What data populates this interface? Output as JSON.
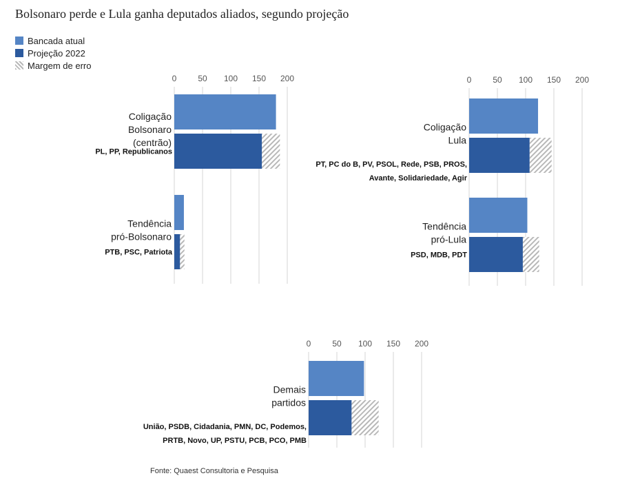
{
  "title": "Bolsonaro perde e Lula ganha deputados aliados, segundo projeção",
  "legend": {
    "atual": "Bancada atual",
    "projecao": "Projeção 2022",
    "margem": "Margem de erro"
  },
  "source": "Fonte: Quaest Consultoria e Pesquisa",
  "colors": {
    "atual": "#5585c5",
    "projecao": "#2c5a9e",
    "margem": "#b8b8b8",
    "grid": "#d4d4d4"
  },
  "chart_data": {
    "type": "bar",
    "xlim": [
      0,
      200
    ],
    "ticks": [
      "0",
      "50",
      "100",
      "150",
      "200"
    ],
    "panels": [
      {
        "groups": [
          {
            "label_lines": [
              "Coligação",
              "Bolsonaro",
              "(centrão)"
            ],
            "parties": [
              "PL, PP, Republicanos"
            ],
            "atual": 180,
            "projecao": 155,
            "margem_low": 155,
            "margem_high": 187
          },
          {
            "label_lines": [
              "Tendência",
              "pró-Bolsonaro"
            ],
            "parties": [
              "PTB, PSC, Patriota"
            ],
            "atual": 17,
            "projecao": 10,
            "margem_low": 8,
            "margem_high": 18
          }
        ]
      },
      {
        "groups": [
          {
            "label_lines": [
              "Coligação",
              "Lula"
            ],
            "parties": [
              "PT, PC do B, PV, PSOL, Rede, PSB, PROS,",
              "Avante, Solidariedade, Agir"
            ],
            "atual": 122,
            "projecao": 107,
            "margem_low": 107,
            "margem_high": 146
          },
          {
            "label_lines": [
              "Tendência",
              "pró-Lula"
            ],
            "parties": [
              "PSD, MDB, PDT"
            ],
            "atual": 103,
            "projecao": 95,
            "margem_low": 95,
            "margem_high": 124
          }
        ]
      },
      {
        "groups": [
          {
            "label_lines": [
              "Demais",
              "partidos"
            ],
            "parties": [
              "União, PSDB, Cidadania, PMN, DC, Podemos,",
              "PRTB, Novo, UP, PSTU, PCB, PCO, PMB"
            ],
            "atual": 98,
            "projecao": 76,
            "margem_low": 76,
            "margem_high": 124
          }
        ]
      }
    ]
  }
}
